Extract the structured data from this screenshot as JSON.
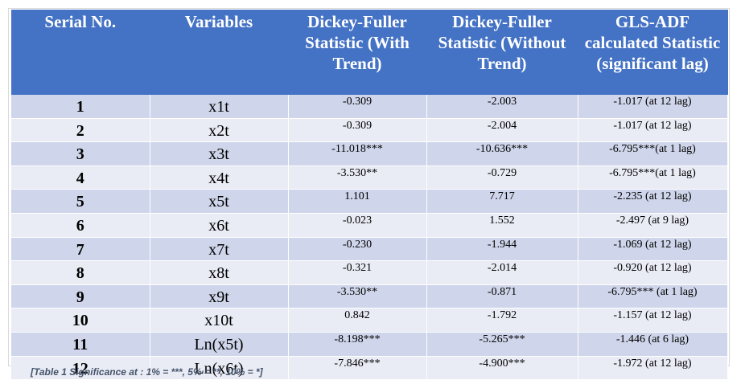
{
  "table": {
    "headers": [
      "Serial No.",
      "Variables",
      "Dickey-Fuller Statistic (With Trend)",
      "Dickey-Fuller Statistic (Without Trend)",
      "GLS-ADF calculated Statistic (significant lag)"
    ],
    "rows": [
      [
        "1",
        "x1t",
        "-0.309",
        "-2.003",
        "-1.017 (at 12 lag)"
      ],
      [
        "2",
        "x2t",
        "-0.309",
        "-2.004",
        "-1.017 (at 12 lag)"
      ],
      [
        "3",
        "x3t",
        "-11.018***",
        "-10.636***",
        "-6.795***(at 1 lag)"
      ],
      [
        "4",
        "x4t",
        "-3.530**",
        "-0.729",
        "-6.795***(at 1 lag)"
      ],
      [
        "5",
        "x5t",
        "1.101",
        "7.717",
        "-2.235 (at 12 lag)"
      ],
      [
        "6",
        "x6t",
        "-0.023",
        "1.552",
        "-2.497 (at 9 lag)"
      ],
      [
        "7",
        "x7t",
        "-0.230",
        "-1.944",
        "-1.069 (at 12 lag)"
      ],
      [
        "8",
        "x8t",
        "-0.321",
        "-2.014",
        "-0.920 (at 12 lag)"
      ],
      [
        "9",
        "x9t",
        "-3.530**",
        "-0.871",
        "-6.795*** (at 1 lag)"
      ],
      [
        "10",
        "x10t",
        "0.842",
        "-1.792",
        "-1.157 (at 12 lag)"
      ],
      [
        "11",
        "Ln(x5t)",
        "-8.198***",
        "-5.265***",
        "-1.446 (at 6 lag)"
      ],
      [
        "12",
        "Ln(x6t)",
        "-7.846***",
        "-4.900***",
        "-1.972 (at 12 lag)"
      ]
    ],
    "footnote": "[Table 1 Significance at : 1% = ***, 5% = **, 10% = *]"
  },
  "colors": {
    "header_bg": "#4472c4",
    "header_text": "#ffffff",
    "row_dark": "#cfd5ea",
    "row_light": "#e9ebf5",
    "footnote_text": "#44546a"
  }
}
